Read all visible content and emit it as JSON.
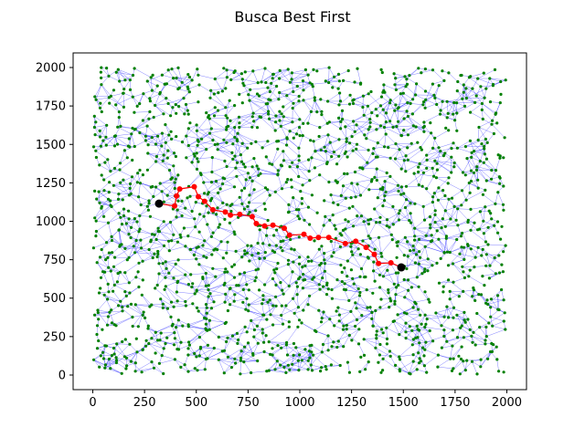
{
  "chart_data": {
    "type": "scatter",
    "title": "Busca Best First",
    "xlabel": "",
    "ylabel": "",
    "xlim": [
      -95,
      2095
    ],
    "ylim": [
      -95,
      2095
    ],
    "xticks": [
      0,
      250,
      500,
      750,
      1000,
      1250,
      1500,
      1750,
      2000
    ],
    "yticks": [
      0,
      250,
      500,
      750,
      1000,
      1250,
      1500,
      1750,
      2000
    ],
    "grid": false,
    "legend": "none",
    "graph": {
      "node_count_approx": 1500,
      "node_color": "#008000",
      "edge_color": "#0000ff",
      "x_range": [
        0,
        2000
      ],
      "y_range": [
        0,
        2000
      ]
    },
    "path": {
      "color": "#ff0000",
      "start": [
        320,
        1115
      ],
      "goal": [
        1490,
        700
      ],
      "endpoint_color": "#000000",
      "points": [
        [
          320,
          1115
        ],
        [
          395,
          1100
        ],
        [
          405,
          1165
        ],
        [
          420,
          1210
        ],
        [
          490,
          1225
        ],
        [
          510,
          1160
        ],
        [
          540,
          1130
        ],
        [
          580,
          1075
        ],
        [
          640,
          1060
        ],
        [
          665,
          1040
        ],
        [
          710,
          1045
        ],
        [
          770,
          1030
        ],
        [
          790,
          985
        ],
        [
          830,
          970
        ],
        [
          870,
          975
        ],
        [
          925,
          955
        ],
        [
          950,
          910
        ],
        [
          1020,
          915
        ],
        [
          1050,
          890
        ],
        [
          1090,
          895
        ],
        [
          1140,
          895
        ],
        [
          1220,
          855
        ],
        [
          1270,
          870
        ],
        [
          1320,
          830
        ],
        [
          1360,
          785
        ],
        [
          1380,
          725
        ],
        [
          1440,
          730
        ],
        [
          1490,
          700
        ]
      ]
    }
  }
}
